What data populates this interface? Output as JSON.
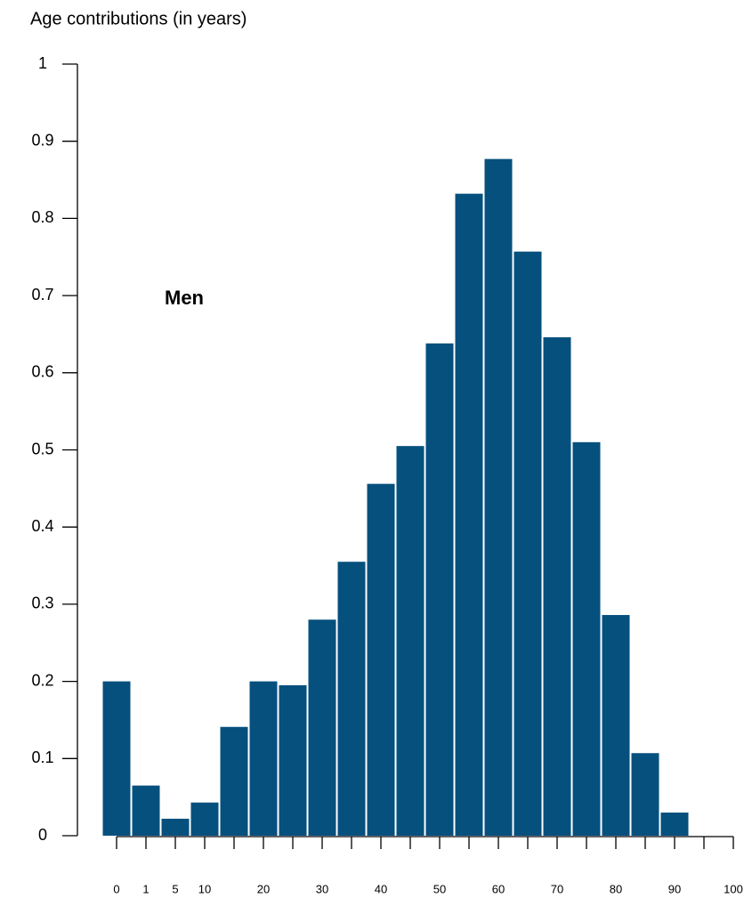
{
  "chart_data": {
    "type": "bar",
    "title": "Age contributions (in years)",
    "annotation": "Men",
    "categories": [
      "0",
      "1",
      "5",
      "10",
      null,
      "20",
      null,
      "30",
      null,
      "40",
      null,
      "50",
      null,
      "60",
      null,
      "70",
      null,
      "80",
      null,
      "90",
      null,
      "100"
    ],
    "values": [
      0.2,
      0.065,
      0.022,
      0.043,
      0.141,
      0.2,
      0.195,
      0.28,
      0.355,
      0.456,
      0.505,
      0.638,
      0.832,
      0.877,
      0.757,
      0.646,
      0.51,
      0.286,
      0.107,
      0.03,
      0,
      0
    ],
    "color": "#06507e",
    "ylim": [
      0,
      1
    ],
    "yticks": [
      0,
      0.1,
      0.2,
      0.3,
      0.4,
      0.5,
      0.6,
      0.7,
      0.8,
      0.9,
      1
    ],
    "grid": false
  }
}
